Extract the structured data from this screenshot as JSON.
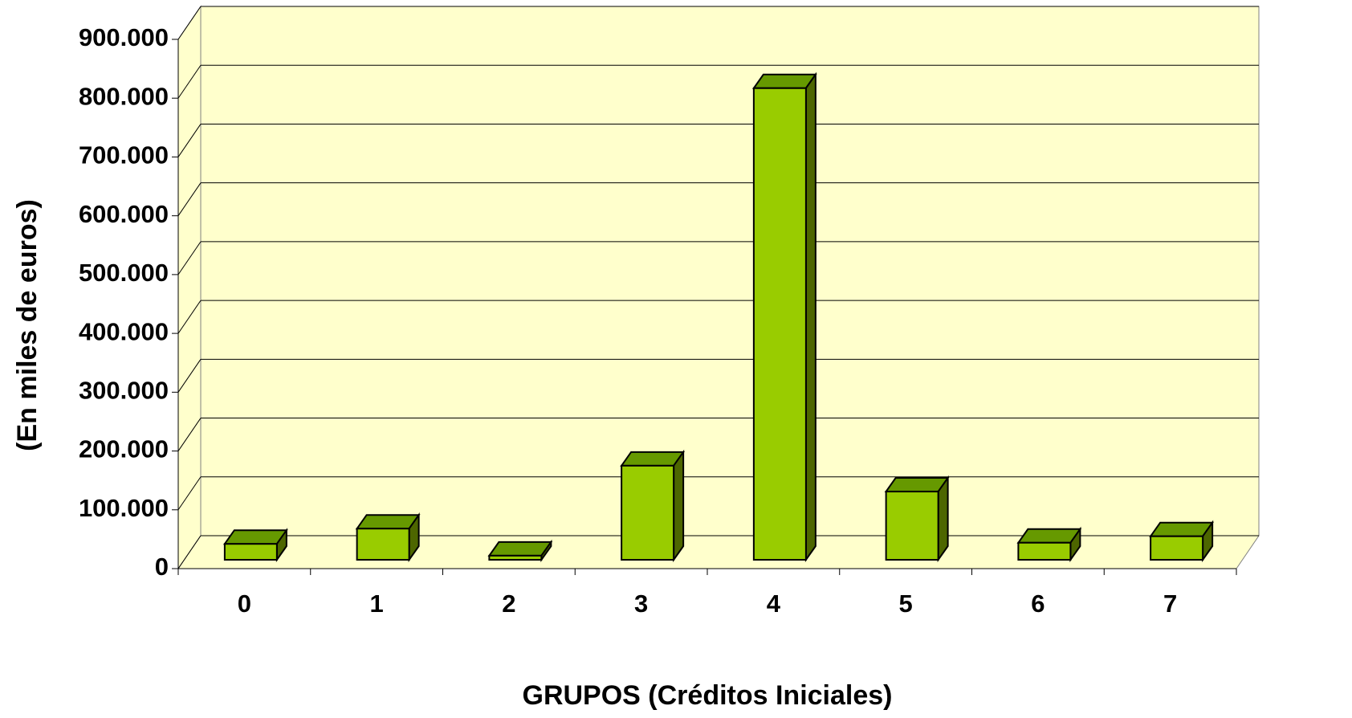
{
  "chart_data": {
    "type": "bar3d",
    "categories": [
      "0",
      "1",
      "2",
      "3",
      "4",
      "5",
      "6",
      "7"
    ],
    "values": [
      27000,
      53000,
      7000,
      160000,
      802000,
      116000,
      29000,
      40000
    ],
    "ylim": [
      0,
      900000
    ],
    "yticks": [
      0,
      {
        "value": 100000,
        "label": "100.000"
      },
      {
        "value": 200000,
        "label": "200.000"
      },
      {
        "value": 300000,
        "label": "300.000"
      },
      {
        "value": 400000,
        "label": "400.000"
      },
      {
        "value": 500000,
        "label": "500.000"
      },
      {
        "value": 600000,
        "label": "600.000"
      },
      {
        "value": 700000,
        "label": "700.000"
      },
      {
        "value": 800000,
        "label": "800.000"
      },
      {
        "value": 900000,
        "label": "900.000"
      }
    ],
    "xlabel": "GRUPOS (Créditos Iniciales)",
    "ylabel": "(En miles de euros)",
    "color": "#99cc00",
    "top_color": "#669900",
    "side_color": "#4d6600",
    "wall_color": "#ffffcc",
    "grid": true
  }
}
